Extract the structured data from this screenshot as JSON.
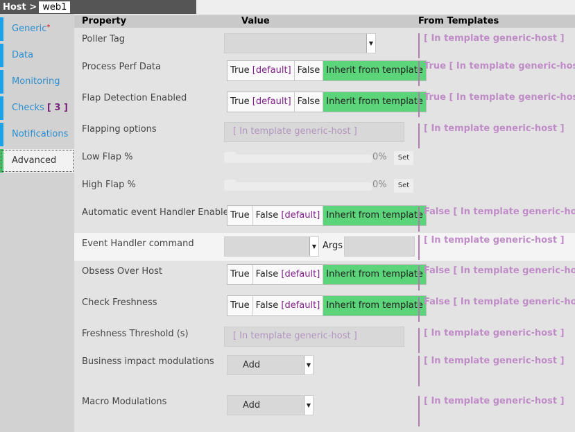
{
  "breadcrumb": {
    "prefix": "Host >",
    "host": "web1"
  },
  "sidebar": {
    "items": [
      {
        "label": "Generic",
        "star": "*"
      },
      {
        "label": "Data"
      },
      {
        "label": "Monitoring"
      },
      {
        "label": "Checks",
        "count": "[ 3 ]"
      },
      {
        "label": "Notifications"
      },
      {
        "label": "Advanced",
        "active": true
      }
    ]
  },
  "colors": {
    "accent": "#1aa3e8",
    "active_green": "#5bd47a",
    "template_purple": "#c08cc8"
  },
  "header": {
    "property": "Property",
    "value": "Value",
    "templates": "From Templates"
  },
  "rows": {
    "poller": {
      "label": "Poller Tag",
      "template": "[ In template generic-host ]"
    },
    "perf": {
      "label": "Process Perf Data",
      "true": "True",
      "true_def": "[default]",
      "false": "False",
      "inherit": "Inherit from template",
      "template": "True [ In template generic-host ]"
    },
    "flap": {
      "label": "Flap Detection Enabled",
      "true": "True",
      "true_def": "[default]",
      "false": "False",
      "inherit": "Inherit from template",
      "template": "True [ In template generic-host ]"
    },
    "flapopts": {
      "label": "Flapping options",
      "value": "[ In template generic-host ]",
      "template": "[ In template generic-host ]"
    },
    "low": {
      "label": "Low Flap %",
      "pct": "0%",
      "set": "Set",
      "value": 0
    },
    "high": {
      "label": "High Flap %",
      "pct": "0%",
      "set": "Set",
      "value": 0
    },
    "auto": {
      "label": "Automatic event Handler Enabled",
      "true": "True",
      "false": "False",
      "false_def": "[default]",
      "inherit": "Inherit from template",
      "template": "False [ In template generic-host ]"
    },
    "evh": {
      "label": "Event Handler command",
      "args": "Args",
      "template": "[ In template generic-host ]"
    },
    "obsess": {
      "label": "Obsess Over Host",
      "true": "True",
      "false": "False",
      "false_def": "[default]",
      "inherit": "Inherit from template",
      "template": "False [ In template generic-host ]"
    },
    "fresh": {
      "label": "Check Freshness",
      "true": "True",
      "false": "False",
      "false_def": "[default]",
      "inherit": "Inherit from template",
      "template": "False [ In template generic-host ]"
    },
    "thresh": {
      "label": "Freshness Threshold (s)",
      "value": "[ In template generic-host ]",
      "template": "[ In template generic-host ]"
    },
    "biz": {
      "label": "Business impact modulations",
      "add": "Add",
      "template": "[ In template generic-host ]"
    },
    "macro": {
      "label": "Macro Modulations",
      "add": "Add",
      "template": "[ In template generic-host ]"
    }
  }
}
